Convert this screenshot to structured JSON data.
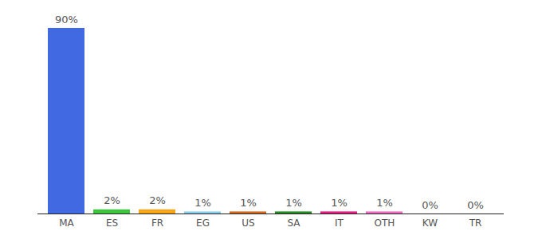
{
  "chart_data": {
    "type": "bar",
    "categories": [
      "MA",
      "ES",
      "FR",
      "EG",
      "US",
      "SA",
      "IT",
      "OTH",
      "KW",
      "TR"
    ],
    "values": [
      90,
      2,
      2,
      1,
      1,
      1,
      1,
      1,
      0,
      0
    ],
    "value_labels": [
      "90%",
      "2%",
      "2%",
      "1%",
      "1%",
      "1%",
      "1%",
      "1%",
      "0%",
      "0%"
    ],
    "colors": [
      "#4169e1",
      "#3cc43c",
      "#f5a516",
      "#87ceeb",
      "#d2691e",
      "#228b22",
      "#e6197f",
      "#f06ac0",
      "#5b9bd5",
      "#c0392b"
    ],
    "ylim": [
      0,
      90
    ],
    "data_labels": true,
    "tick_labels": "x",
    "grid": false
  }
}
